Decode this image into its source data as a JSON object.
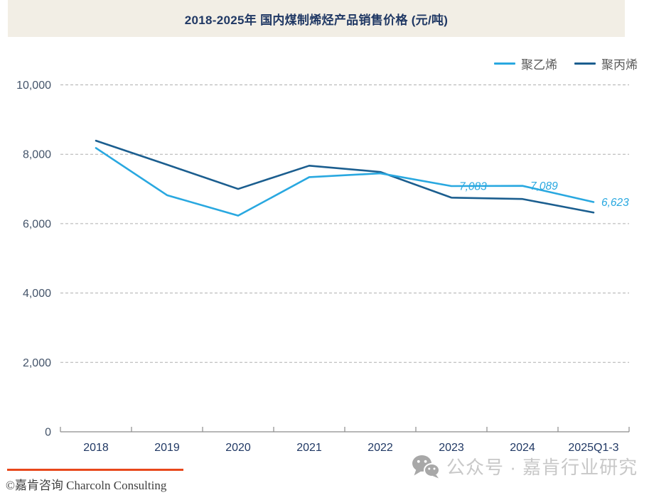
{
  "title": "2018-2025年 国内煤制烯烃产品销售价格 (元/吨)",
  "colors": {
    "title_navy": "#203864",
    "axis_label_gray_blue": "#44546A",
    "accent_light_blue": "#29A8E0",
    "accent_dark_blue": "#1B5E8F",
    "brand_orange": "#E8481C",
    "wechat_gray": "#C8C8C8",
    "title_band_beige": "#F2EEE5"
  },
  "footer": {
    "copyright": "©嘉肯咨询 Charcoln Consulting",
    "wechat": "公众号 · 嘉肯行业研究",
    "divider_color": "#E8481C"
  },
  "chart_data": {
    "type": "line",
    "title": "2018-2025年 国内煤制烯烃产品销售价格 (元/吨)",
    "categories": [
      "2018",
      "2019",
      "2020",
      "2021",
      "2022",
      "2023",
      "2024",
      "2025Q1-3"
    ],
    "series": [
      {
        "name": "聚乙烯",
        "color": "#29A8E0",
        "values": [
          8180,
          6820,
          6230,
          7340,
          7450,
          7083,
          7089,
          6623
        ],
        "point_labels": [
          null,
          null,
          null,
          null,
          null,
          "7,083",
          "7,089",
          "6,623"
        ]
      },
      {
        "name": "聚丙烯",
        "color": "#1B5E8F",
        "values": [
          8390,
          7700,
          7000,
          7670,
          7490,
          6750,
          6710,
          6320
        ],
        "point_labels": [
          null,
          null,
          null,
          null,
          null,
          null,
          null,
          null
        ]
      }
    ],
    "ylim": [
      0,
      10000
    ],
    "yticks": [
      {
        "v": 0,
        "label": "0"
      },
      {
        "v": 2000,
        "label": "2,000"
      },
      {
        "v": 4000,
        "label": "4,000"
      },
      {
        "v": 6000,
        "label": "6,000"
      },
      {
        "v": 8000,
        "label": "8,000"
      },
      {
        "v": 10000,
        "label": "10,000"
      }
    ],
    "grid": "horizontal-dashed",
    "legend_position": "top-right"
  }
}
